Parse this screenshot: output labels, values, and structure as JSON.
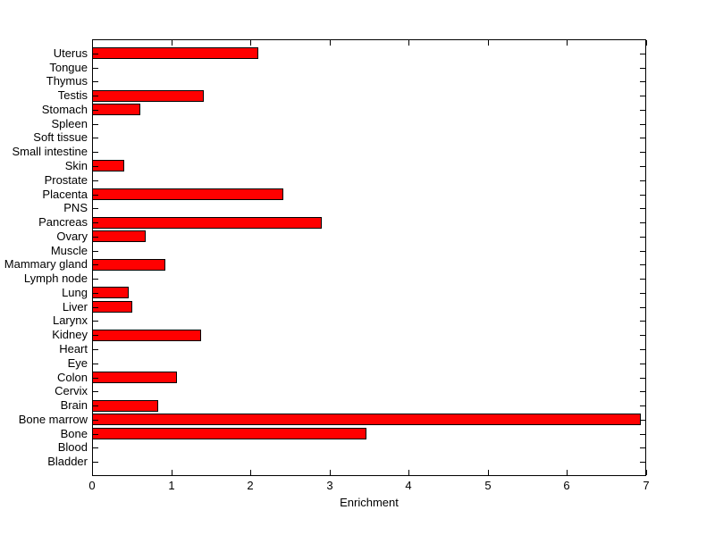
{
  "chart_data": {
    "type": "bar",
    "orientation": "horizontal",
    "title": "",
    "xlabel": "Enrichment",
    "ylabel": "",
    "xlim": [
      0,
      7
    ],
    "x_ticks": [
      0,
      1,
      2,
      3,
      4,
      5,
      6,
      7
    ],
    "grid": false,
    "legend": null,
    "bar_color": "#ff0000",
    "bar_edge_color": "#000000",
    "axis_color": "#000000",
    "background_color": "#ffffff",
    "categories": [
      "Uterus",
      "Tongue",
      "Thymus",
      "Testis",
      "Stomach",
      "Spleen",
      "Soft tissue",
      "Small intestine",
      "Skin",
      "Prostate",
      "Placenta",
      "PNS",
      "Pancreas",
      "Ovary",
      "Muscle",
      "Mammary gland",
      "Lymph node",
      "Lung",
      "Liver",
      "Larynx",
      "Kidney",
      "Heart",
      "Eye",
      "Colon",
      "Cervix",
      "Brain",
      "Bone marrow",
      "Bone",
      "Blood",
      "Bladder"
    ],
    "values": [
      2.09,
      0,
      0,
      1.4,
      0.6,
      0,
      0,
      0,
      0.4,
      0,
      2.4,
      0,
      2.89,
      0.67,
      0,
      0.91,
      0,
      0.45,
      0.5,
      0,
      1.37,
      0,
      0,
      1.06,
      0,
      0.82,
      6.92,
      3.46,
      0,
      0
    ]
  }
}
